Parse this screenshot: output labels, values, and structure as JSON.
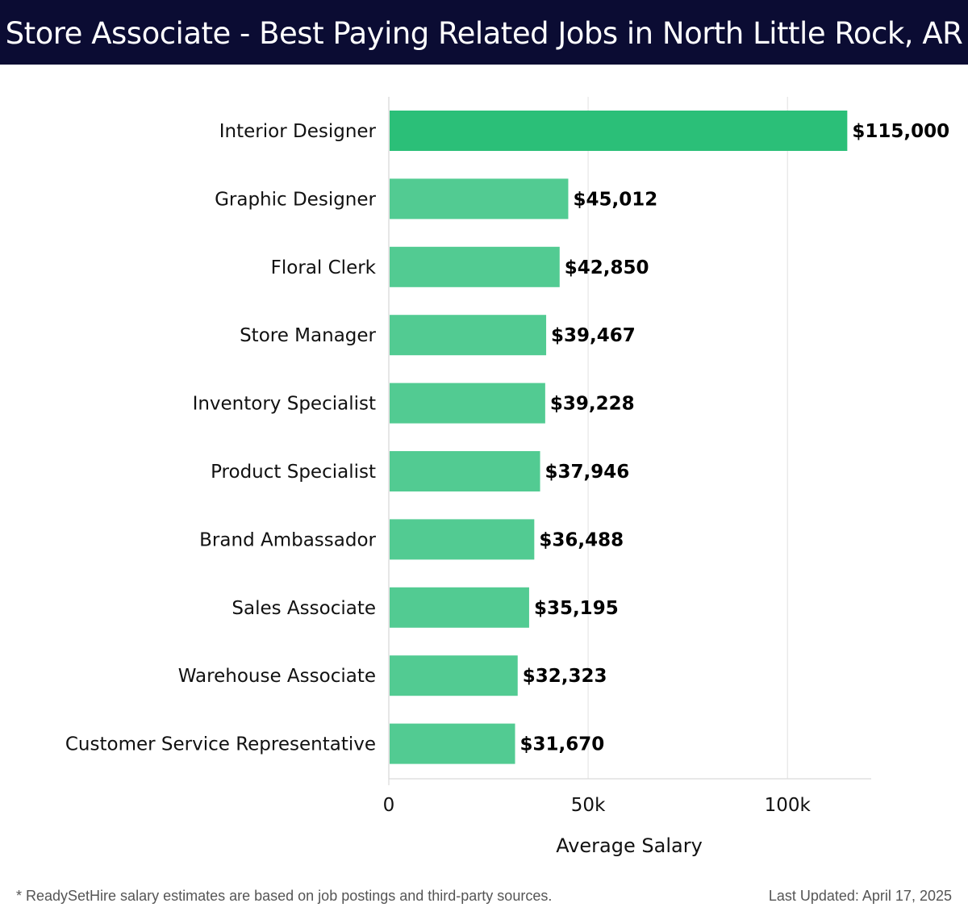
{
  "header": {
    "title": "Store Associate - Best Paying Related Jobs in North Little Rock, AR"
  },
  "chart_data": {
    "type": "bar",
    "orientation": "horizontal",
    "categories": [
      "Interior Designer",
      "Graphic Designer",
      "Floral Clerk",
      "Store Manager",
      "Inventory Specialist",
      "Product Specialist",
      "Brand Ambassador",
      "Sales Associate",
      "Warehouse Associate",
      "Customer Service Representative"
    ],
    "values": [
      115000,
      45012,
      42850,
      39467,
      39228,
      37946,
      36488,
      35195,
      32323,
      31670
    ],
    "value_labels": [
      "$115,000",
      "$45,012",
      "$42,850",
      "$39,467",
      "$39,228",
      "$37,946",
      "$36,488",
      "$35,195",
      "$32,323",
      "$31,670"
    ],
    "xlabel": "Average Salary",
    "ylabel": "",
    "xlim": [
      0,
      121000
    ],
    "x_ticks": [
      0,
      50000,
      100000
    ],
    "x_tick_labels": [
      "0",
      "50k",
      "100k"
    ],
    "grid": "vertical",
    "legend": "none",
    "colors": {
      "highlight": "#2bbf78",
      "bar": "#52cb92",
      "grid": "#e6e6e6",
      "axis": "#d9d9d9"
    }
  },
  "footer": {
    "note": "* ReadySetHire salary estimates are based on job postings and third-party sources.",
    "updated": "Last Updated: April 17, 2025"
  }
}
